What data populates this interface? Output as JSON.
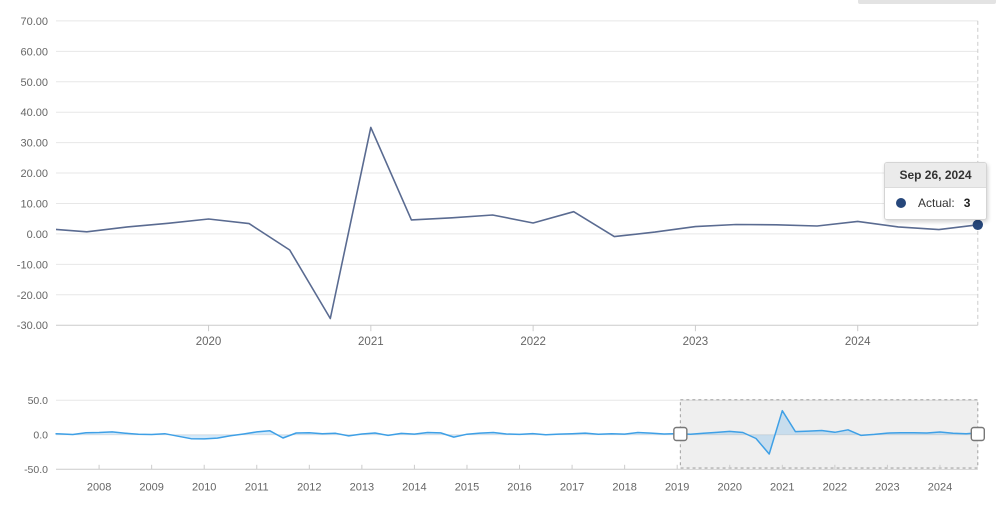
{
  "tooltip": {
    "date": "Sep 26, 2024",
    "series_label": "Actual:",
    "value": "3"
  },
  "colors": {
    "main_line": "#5a6b91",
    "marker": "#26477b",
    "navigator_line": "#3fa0e6",
    "navigator_fill": "rgba(63,160,230,0.22)",
    "grid": "#e7e7e7",
    "axis_line": "#cccccc",
    "tick_label": "#666666",
    "crosshair": "#cccccc",
    "selection_fill": "rgba(125,125,125,0.12)",
    "selection_border": "#a0a0a0",
    "handle_fill": "#ffffff",
    "handle_border": "#777777",
    "tooltip_header_bg": "#ebebeb"
  },
  "chart_data": [
    {
      "id": "main",
      "type": "line",
      "title": "",
      "xlabel": "",
      "ylabel": "",
      "grid": true,
      "legend": "none",
      "xlim": [
        2019.06,
        2024.74
      ],
      "ylim": [
        -30,
        70
      ],
      "y_tick_values": [
        70,
        60,
        50,
        40,
        30,
        20,
        10,
        0,
        -10,
        -20,
        -30
      ],
      "y_tick_labels": [
        "70.00",
        "60.00",
        "50.00",
        "40.00",
        "30.00",
        "20.00",
        "10.00",
        "0.00",
        "-10.00",
        "-20.00",
        "-30.00"
      ],
      "x_tick_values": [
        2020,
        2021,
        2022,
        2023,
        2024
      ],
      "x_tick_labels": [
        "2020",
        "2021",
        "2022",
        "2023",
        "2024"
      ],
      "series": [
        {
          "name": "Actual",
          "x": [
            2019,
            2019.25,
            2019.5,
            2019.75,
            2020,
            2020.25,
            2020.5,
            2020.75,
            2021,
            2021.25,
            2021.5,
            2021.75,
            2022,
            2022.25,
            2022.5,
            2022.75,
            2023,
            2023.25,
            2023.5,
            2023.75,
            2024,
            2024.25,
            2024.5,
            2024.74
          ],
          "values": [
            1.7,
            0.7,
            2.3,
            3.5,
            4.9,
            3.4,
            -5.3,
            -27.8,
            35,
            4.6,
            5.3,
            6.2,
            3.6,
            7.3,
            -0.9,
            0.6,
            2.4,
            3.1,
            3.0,
            2.6,
            4.1,
            2.3,
            1.4,
            3
          ]
        }
      ],
      "last_point_marker": {
        "x": 2024.74,
        "value": 3,
        "date": "Sep 26, 2024"
      },
      "crosshair_x": 2024.74
    },
    {
      "id": "navigator",
      "type": "area",
      "title": "",
      "grid": true,
      "legend": "none",
      "xlim": [
        2007.18,
        2024.72
      ],
      "ylim": [
        -50,
        50
      ],
      "y_tick_values": [
        50,
        0,
        -50
      ],
      "y_tick_labels": [
        "50.0",
        "0.0",
        "-50.0"
      ],
      "x_tick_values": [
        2008,
        2009,
        2010,
        2011,
        2012,
        2013,
        2014,
        2015,
        2016,
        2017,
        2018,
        2019,
        2020,
        2021,
        2022,
        2023,
        2024
      ],
      "x_tick_labels": [
        "2008",
        "2009",
        "2010",
        "2011",
        "2012",
        "2013",
        "2014",
        "2015",
        "2016",
        "2017",
        "2018",
        "2019",
        "2020",
        "2021",
        "2022",
        "2023",
        "2024"
      ],
      "series": [
        {
          "name": "Actual",
          "x": [
            2007.17,
            2007.25,
            2007.5,
            2007.75,
            2008,
            2008.25,
            2008.5,
            2008.75,
            2009,
            2009.25,
            2009.5,
            2009.75,
            2010,
            2010.25,
            2010.5,
            2010.75,
            2011,
            2011.25,
            2011.5,
            2011.75,
            2012,
            2012.25,
            2012.5,
            2012.75,
            2013,
            2013.25,
            2013.5,
            2013.75,
            2014,
            2014.25,
            2014.5,
            2014.75,
            2015,
            2015.25,
            2015.5,
            2015.75,
            2016,
            2016.25,
            2016.5,
            2016.75,
            2017,
            2017.25,
            2017.5,
            2017.75,
            2018,
            2018.25,
            2018.5,
            2018.75,
            2019,
            2019.25,
            2019.5,
            2019.75,
            2020,
            2020.25,
            2020.5,
            2020.75,
            2021,
            2021.25,
            2021.5,
            2021.75,
            2022,
            2022.25,
            2022.5,
            2022.75,
            2023,
            2023.25,
            2023.5,
            2023.75,
            2024,
            2024.25,
            2024.5,
            2024.74
          ],
          "values": [
            1.5,
            1.3,
            0.5,
            3.0,
            3.3,
            4.2,
            2.3,
            0.8,
            0.5,
            1.6,
            -2.0,
            -5.6,
            -6.0,
            -4.8,
            -1.5,
            1.2,
            4.2,
            5.8,
            -4.6,
            2.6,
            3.1,
            1.4,
            2.2,
            -1.6,
            1.2,
            2.6,
            -0.8,
            2.1,
            1.0,
            3.4,
            2.8,
            -3.4,
            0.8,
            2.4,
            3.3,
            1.2,
            0.6,
            1.8,
            0.2,
            1.0,
            1.6,
            2.4,
            0.8,
            1.6,
            1.0,
            3.4,
            2.4,
            1.2,
            1.7,
            0.7,
            2.3,
            3.5,
            4.9,
            3.4,
            -5.3,
            -27.8,
            35,
            4.6,
            5.3,
            6.2,
            3.6,
            7.3,
            -0.9,
            0.6,
            2.4,
            3.1,
            3.0,
            2.6,
            4.1,
            2.3,
            1.4,
            3
          ],
          "threshold": 0
        }
      ],
      "selection": {
        "from": 2019.06,
        "to": 2024.72
      }
    }
  ]
}
